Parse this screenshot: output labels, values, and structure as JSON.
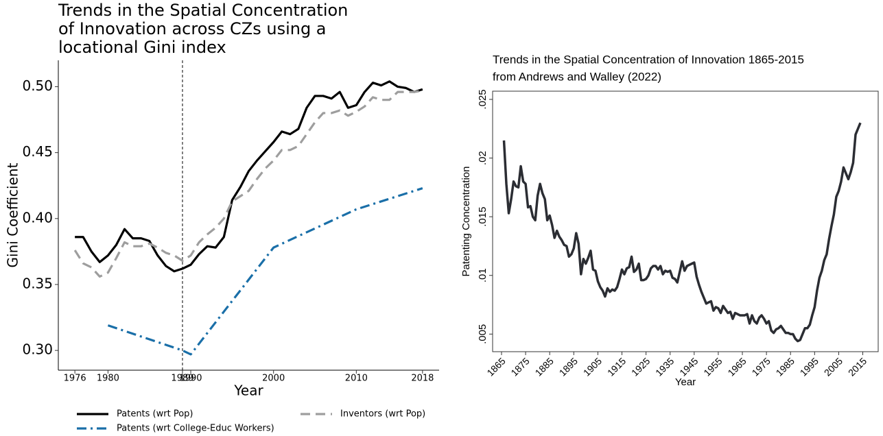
{
  "chart_data": [
    {
      "type": "line",
      "title": [
        "Trends in the Spatial Concentration",
        "of Innovation across CZs using a",
        "locational Gini index"
      ],
      "xlabel": "Year",
      "ylabel": "Gini Coefficient",
      "x": [
        1976,
        1977,
        1978,
        1979,
        1980,
        1981,
        1982,
        1983,
        1984,
        1985,
        1986,
        1987,
        1988,
        1989,
        1990,
        1991,
        1992,
        1993,
        1994,
        1995,
        1996,
        1997,
        1998,
        1999,
        2000,
        2001,
        2002,
        2003,
        2004,
        2005,
        2006,
        2007,
        2008,
        2009,
        2010,
        2011,
        2012,
        2013,
        2014,
        2015,
        2016,
        2017,
        2018
      ],
      "series": [
        {
          "name": "Patents (wrt Pop)",
          "color": "#000000",
          "dash": "solid",
          "values": [
            0.386,
            0.386,
            0.375,
            0.367,
            0.372,
            0.38,
            0.392,
            0.385,
            0.385,
            0.383,
            0.372,
            0.364,
            0.36,
            0.362,
            0.365,
            0.373,
            0.379,
            0.378,
            0.386,
            0.414,
            0.424,
            0.436,
            0.444,
            0.451,
            0.458,
            0.466,
            0.464,
            0.468,
            0.484,
            0.493,
            0.493,
            0.491,
            0.496,
            0.484,
            0.486,
            0.496,
            0.503,
            0.501,
            0.504,
            0.5,
            0.499,
            0.496,
            0.498
          ]
        },
        {
          "name": "Inventors (wrt Pop)",
          "color": "#9e9e9e",
          "dash": "dashed",
          "values": [
            0.376,
            0.366,
            0.363,
            0.356,
            0.359,
            0.37,
            0.382,
            0.379,
            0.379,
            0.381,
            0.378,
            0.374,
            0.372,
            0.368,
            0.372,
            0.382,
            0.388,
            0.393,
            0.4,
            0.413,
            0.417,
            0.421,
            0.43,
            0.438,
            0.444,
            0.452,
            0.452,
            0.455,
            0.464,
            0.473,
            0.48,
            0.48,
            0.482,
            0.478,
            0.481,
            0.485,
            0.492,
            0.49,
            0.49,
            0.496,
            0.496,
            0.496,
            0.497
          ]
        },
        {
          "name": "Patents (wrt College-Educ Workers)",
          "color": "#1a6fa8",
          "dash": "dashdot",
          "x": [
            1980,
            1989,
            1990,
            2000,
            2010,
            2018
          ],
          "values": [
            0.319,
            0.3,
            0.297,
            0.378,
            0.407,
            0.423
          ]
        }
      ],
      "xlim": [
        1974,
        2020
      ],
      "xticks": [
        1976,
        1980,
        1989,
        1990,
        2000,
        2010,
        2018
      ],
      "ylim": [
        0.285,
        0.52
      ],
      "yticks": [
        {
          "value": 0.3,
          "label": "0.30"
        },
        0.35,
        {
          "value": 0.4,
          "label": "0.40"
        },
        0.45,
        {
          "value": 0.5,
          "label": "0.50"
        }
      ],
      "vline": 1989,
      "grid": false,
      "legend": "bottom"
    },
    {
      "type": "line",
      "title": [
        "Trends in the Spatial Concentration of Innovation 1865-2015",
        "from Andrews and Walley (2022)"
      ],
      "xlabel": "Year",
      "ylabel": "Patenting Concentration",
      "x": [
        1866,
        1867,
        1868,
        1869,
        1870,
        1871,
        1872,
        1873,
        1874,
        1875,
        1876,
        1877,
        1878,
        1879,
        1880,
        1881,
        1882,
        1883,
        1884,
        1885,
        1886,
        1887,
        1888,
        1889,
        1890,
        1891,
        1892,
        1893,
        1894,
        1895,
        1896,
        1897,
        1898,
        1899,
        1900,
        1901,
        1902,
        1903,
        1904,
        1905,
        1906,
        1907,
        1908,
        1909,
        1910,
        1911,
        1912,
        1913,
        1914,
        1915,
        1916,
        1917,
        1918,
        1919,
        1920,
        1921,
        1922,
        1923,
        1924,
        1925,
        1926,
        1927,
        1928,
        1929,
        1930,
        1931,
        1932,
        1933,
        1934,
        1935,
        1936,
        1937,
        1938,
        1939,
        1940,
        1941,
        1942,
        1943,
        1944,
        1945,
        1946,
        1947,
        1948,
        1949,
        1950,
        1951,
        1952,
        1953,
        1954,
        1955,
        1956,
        1957,
        1958,
        1959,
        1960,
        1961,
        1962,
        1963,
        1964,
        1965,
        1966,
        1967,
        1968,
        1969,
        1970,
        1971,
        1972,
        1973,
        1974,
        1975,
        1976,
        1977,
        1978,
        1979,
        1980,
        1981,
        1982,
        1983,
        1984,
        1985,
        1986,
        1987,
        1988,
        1989,
        1990,
        1991,
        1992,
        1993,
        1994,
        1995,
        1996,
        1997,
        1998,
        1999,
        2000,
        2001,
        2002,
        2003,
        2004,
        2005,
        2006,
        2007,
        2008,
        2009,
        2010,
        2011,
        2012,
        2013,
        2014
      ],
      "series": [
        {
          "name": "Patenting Concentration",
          "color": "#2b2d33",
          "dash": "solid",
          "values": [
            0.0215,
            0.0178,
            0.0153,
            0.0165,
            0.018,
            0.0176,
            0.0175,
            0.0193,
            0.018,
            0.0178,
            0.0158,
            0.0159,
            0.015,
            0.0147,
            0.0168,
            0.0178,
            0.017,
            0.0165,
            0.0147,
            0.0151,
            0.0143,
            0.0132,
            0.0138,
            0.0133,
            0.013,
            0.0126,
            0.0125,
            0.0116,
            0.0118,
            0.0123,
            0.0136,
            0.0127,
            0.0101,
            0.0114,
            0.011,
            0.0115,
            0.0121,
            0.0105,
            0.0104,
            0.0095,
            0.009,
            0.0087,
            0.0082,
            0.0089,
            0.0086,
            0.0088,
            0.0087,
            0.009,
            0.0097,
            0.0105,
            0.0101,
            0.0106,
            0.0107,
            0.0116,
            0.0103,
            0.0105,
            0.011,
            0.0096,
            0.0096,
            0.0097,
            0.01,
            0.0106,
            0.0108,
            0.0108,
            0.0105,
            0.0108,
            0.0101,
            0.0104,
            0.0103,
            0.0104,
            0.0098,
            0.0097,
            0.0094,
            0.0103,
            0.0112,
            0.0104,
            0.0108,
            0.0109,
            0.011,
            0.0111,
            0.0099,
            0.0092,
            0.0086,
            0.0081,
            0.0076,
            0.0077,
            0.0078,
            0.007,
            0.0073,
            0.0072,
            0.0068,
            0.0074,
            0.0071,
            0.0068,
            0.0069,
            0.0063,
            0.0068,
            0.0067,
            0.0066,
            0.0066,
            0.0066,
            0.0067,
            0.0059,
            0.0066,
            0.0061,
            0.0059,
            0.0064,
            0.0066,
            0.0063,
            0.0059,
            0.0061,
            0.0053,
            0.0051,
            0.0054,
            0.0055,
            0.0057,
            0.0054,
            0.0051,
            0.0051,
            0.005,
            0.005,
            0.0046,
            0.0044,
            0.0045,
            0.005,
            0.0055,
            0.0055,
            0.0058,
            0.0066,
            0.0073,
            0.0087,
            0.0098,
            0.0104,
            0.0113,
            0.0118,
            0.0131,
            0.0142,
            0.0152,
            0.0167,
            0.0172,
            0.018,
            0.0192,
            0.0187,
            0.0182,
            0.0188,
            0.0196,
            0.022,
            0.0225,
            0.023
          ]
        }
      ],
      "xlim": [
        1861.3,
        2021.4
      ],
      "xticks": [
        1865,
        1875,
        1885,
        1895,
        1905,
        1915,
        1925,
        1935,
        1945,
        1955,
        1965,
        1975,
        1985,
        1995,
        2005,
        2015
      ],
      "ylim": [
        0.0035,
        0.0257
      ],
      "yticks": [
        {
          "value": 0.005,
          "label": ".005"
        },
        {
          "value": 0.01,
          "label": ".01"
        },
        {
          "value": 0.015,
          "label": ".015"
        },
        {
          "value": 0.02,
          "label": ".02"
        },
        {
          "value": 0.025,
          "label": ".025"
        }
      ],
      "grid": false,
      "frame": true
    }
  ]
}
